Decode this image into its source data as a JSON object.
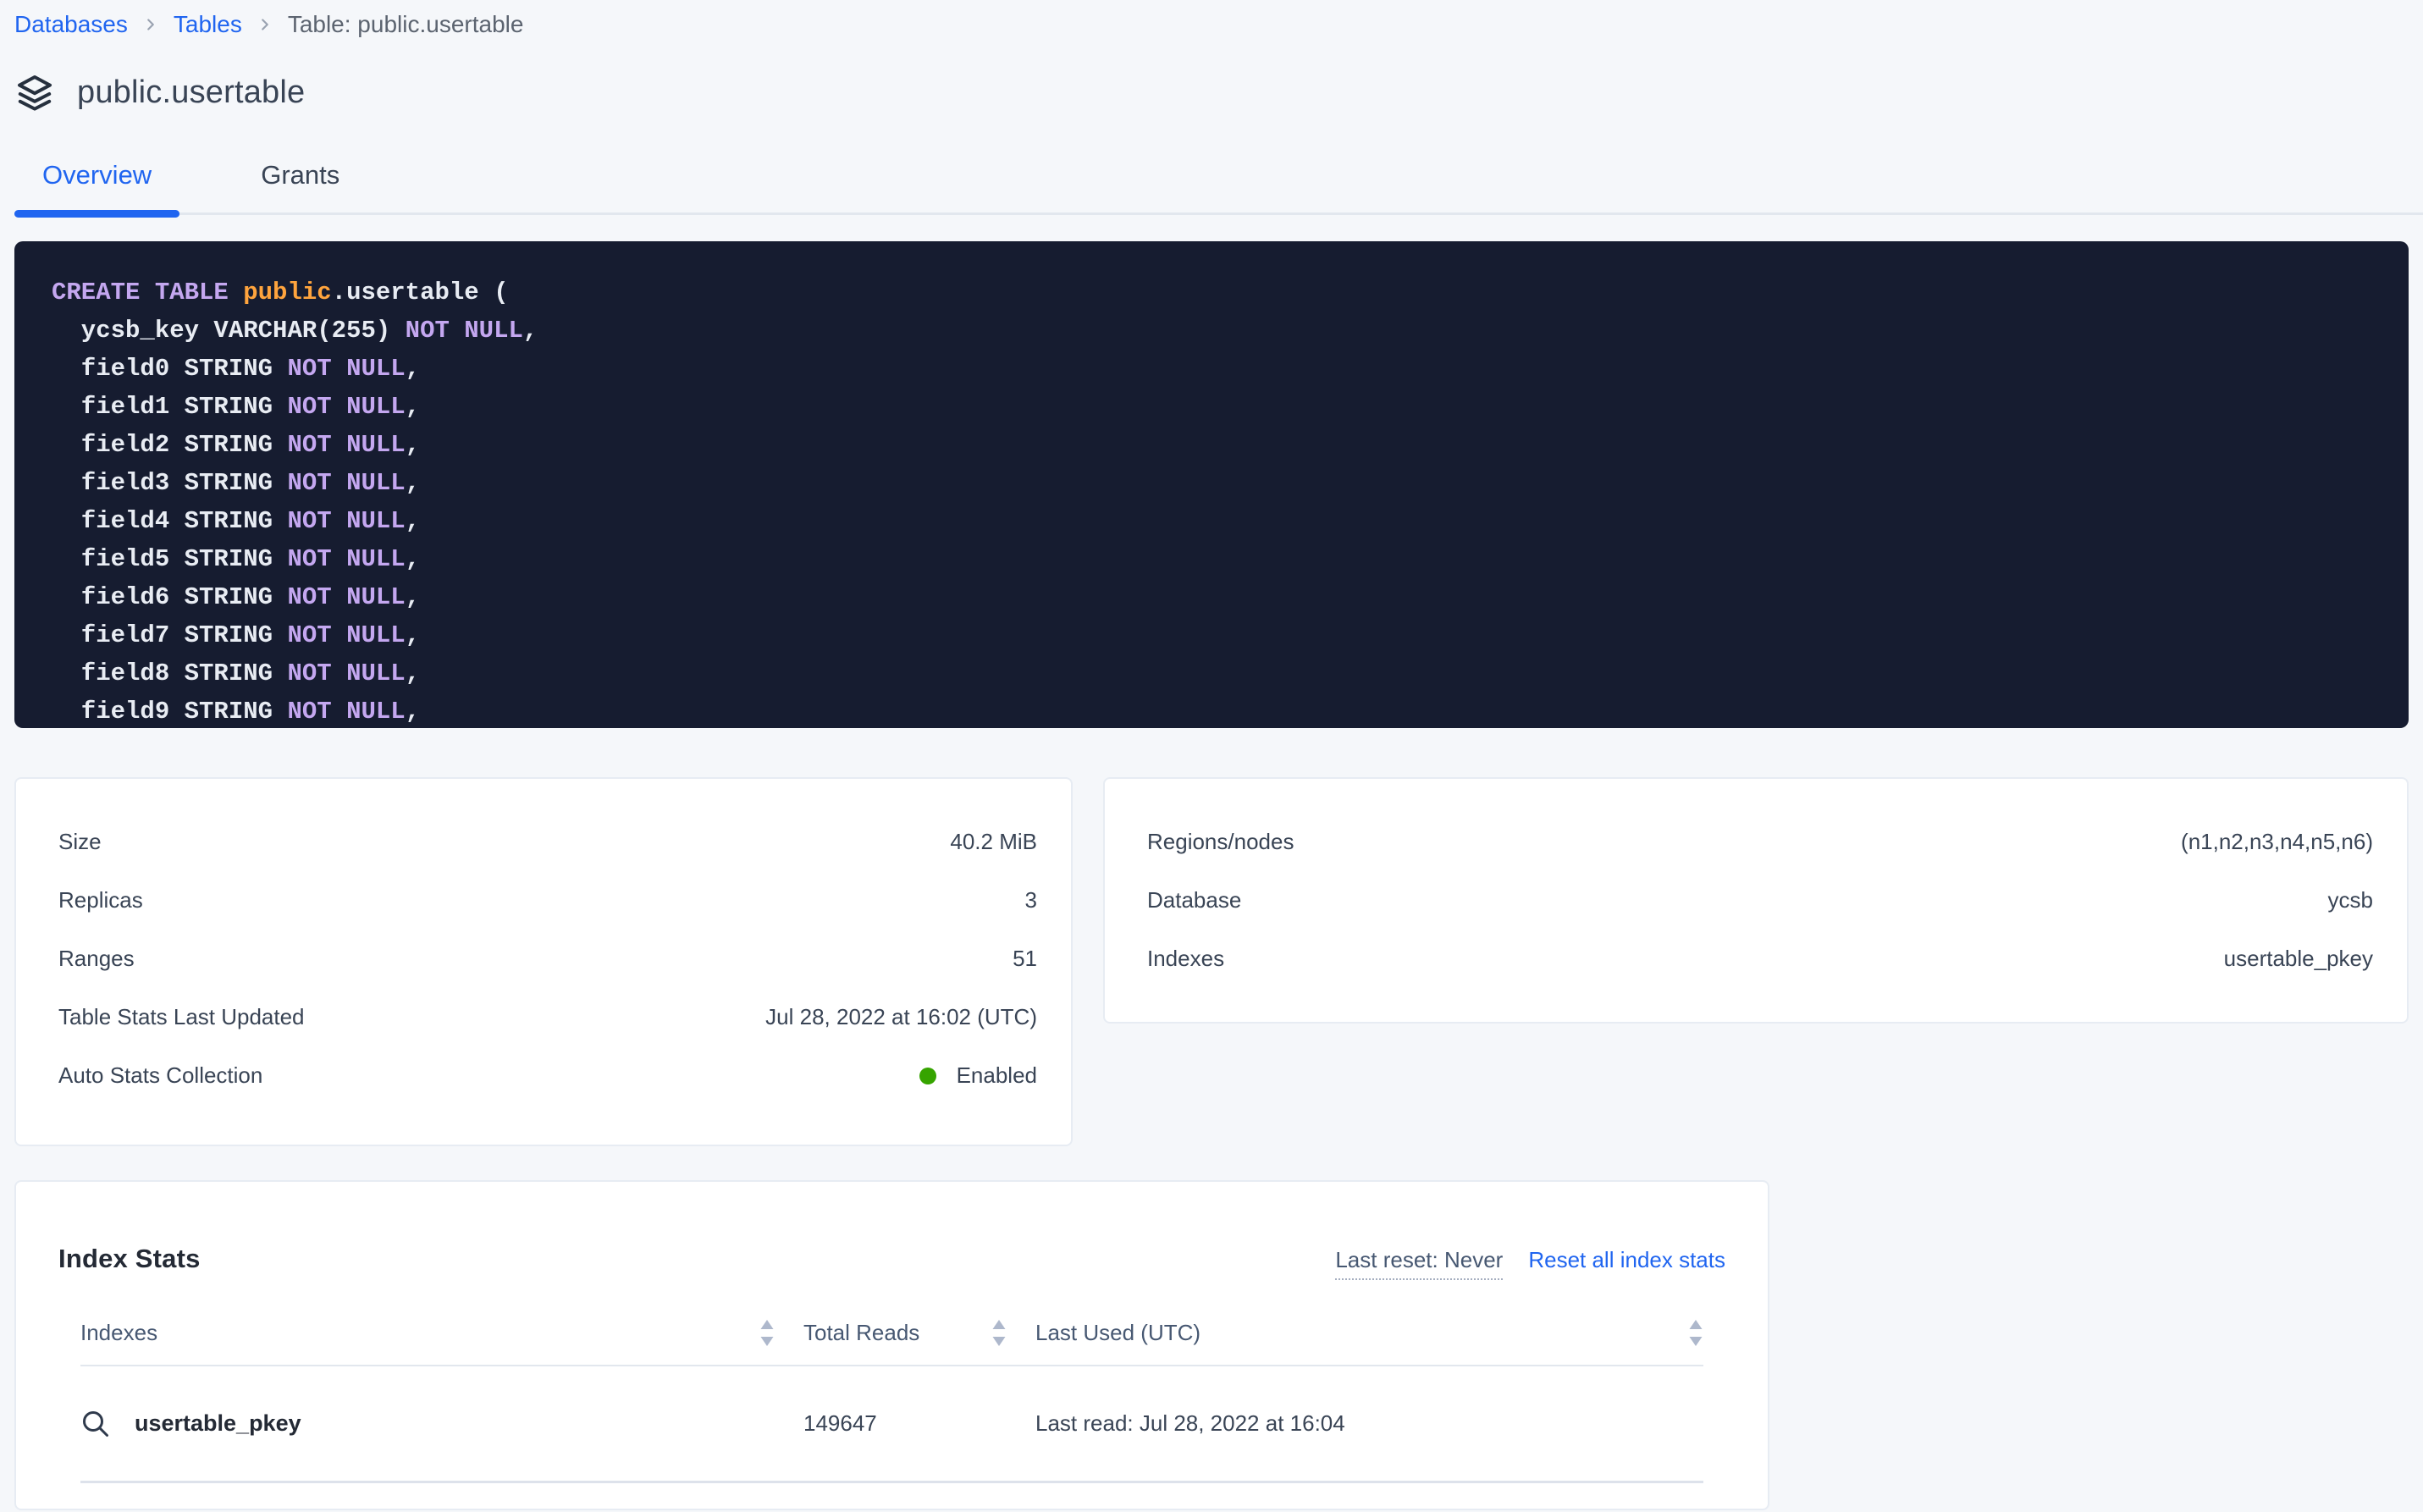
{
  "breadcrumb": {
    "links": [
      {
        "label": "Databases"
      },
      {
        "label": "Tables"
      }
    ],
    "current": "Table: public.usertable"
  },
  "header": {
    "title": "public.usertable"
  },
  "tabs": [
    {
      "label": "Overview",
      "active": true
    },
    {
      "label": "Grants",
      "active": false
    }
  ],
  "sql": {
    "lines": [
      [
        {
          "t": "CREATE TABLE ",
          "c": "kw"
        },
        {
          "t": "public",
          "c": "db"
        },
        {
          "t": ".usertable (",
          "c": "pl"
        }
      ],
      [
        {
          "t": "  ycsb_key VARCHAR(255) ",
          "c": "pl"
        },
        {
          "t": "NOT NULL",
          "c": "kw"
        },
        {
          "t": ",",
          "c": "pl"
        }
      ],
      [
        {
          "t": "  field0 STRING ",
          "c": "pl"
        },
        {
          "t": "NOT NULL",
          "c": "kw"
        },
        {
          "t": ",",
          "c": "pl"
        }
      ],
      [
        {
          "t": "  field1 STRING ",
          "c": "pl"
        },
        {
          "t": "NOT NULL",
          "c": "kw"
        },
        {
          "t": ",",
          "c": "pl"
        }
      ],
      [
        {
          "t": "  field2 STRING ",
          "c": "pl"
        },
        {
          "t": "NOT NULL",
          "c": "kw"
        },
        {
          "t": ",",
          "c": "pl"
        }
      ],
      [
        {
          "t": "  field3 STRING ",
          "c": "pl"
        },
        {
          "t": "NOT NULL",
          "c": "kw"
        },
        {
          "t": ",",
          "c": "pl"
        }
      ],
      [
        {
          "t": "  field4 STRING ",
          "c": "pl"
        },
        {
          "t": "NOT NULL",
          "c": "kw"
        },
        {
          "t": ",",
          "c": "pl"
        }
      ],
      [
        {
          "t": "  field5 STRING ",
          "c": "pl"
        },
        {
          "t": "NOT NULL",
          "c": "kw"
        },
        {
          "t": ",",
          "c": "pl"
        }
      ],
      [
        {
          "t": "  field6 STRING ",
          "c": "pl"
        },
        {
          "t": "NOT NULL",
          "c": "kw"
        },
        {
          "t": ",",
          "c": "pl"
        }
      ],
      [
        {
          "t": "  field7 STRING ",
          "c": "pl"
        },
        {
          "t": "NOT NULL",
          "c": "kw"
        },
        {
          "t": ",",
          "c": "pl"
        }
      ],
      [
        {
          "t": "  field8 STRING ",
          "c": "pl"
        },
        {
          "t": "NOT NULL",
          "c": "kw"
        },
        {
          "t": ",",
          "c": "pl"
        }
      ],
      [
        {
          "t": "  field9 STRING ",
          "c": "pl"
        },
        {
          "t": "NOT NULL",
          "c": "kw"
        },
        {
          "t": ",",
          "c": "pl"
        }
      ]
    ]
  },
  "details_left": {
    "rows": [
      {
        "label": "Size",
        "value": "40.2 MiB"
      },
      {
        "label": "Replicas",
        "value": "3"
      },
      {
        "label": "Ranges",
        "value": "51"
      },
      {
        "label": "Table Stats Last Updated",
        "value": "Jul 28, 2022 at 16:02 (UTC)"
      },
      {
        "label": "Auto Stats Collection",
        "value": "Enabled",
        "dot": true
      }
    ]
  },
  "details_right": {
    "rows": [
      {
        "label": "Regions/nodes",
        "value": "(n1,n2,n3,n4,n5,n6)"
      },
      {
        "label": "Database",
        "value": "ycsb"
      },
      {
        "label": "Indexes",
        "value": "usertable_pkey"
      }
    ]
  },
  "index_stats": {
    "title": "Index Stats",
    "last_reset_label": "Last reset: Never",
    "reset_link": "Reset all index stats",
    "columns": [
      "Indexes",
      "Total Reads",
      "Last Used (UTC)"
    ],
    "rows": [
      {
        "name": "usertable_pkey",
        "total_reads": "149647",
        "last_used": "Last read: Jul 28, 2022 at 16:04"
      }
    ]
  },
  "colors": {
    "accent_blue": "#2065F0",
    "status_green": "#36A400",
    "code_keyword": "#C4A7F0",
    "code_database": "#FFA43D",
    "code_background": "#161C30"
  }
}
